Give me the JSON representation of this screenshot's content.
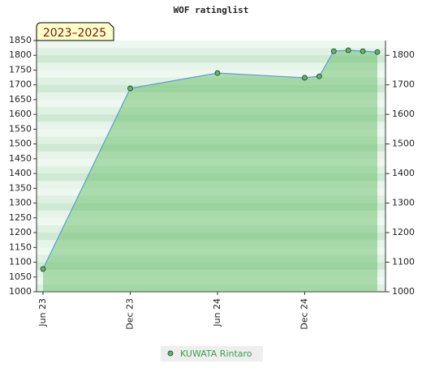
{
  "chart_data": {
    "type": "area",
    "title": "WOF ratinglist",
    "annotation": "2023–2025",
    "x": [
      "2023-06",
      "2023-12",
      "2024-06",
      "2024-12",
      "2025-01",
      "2025-02",
      "2025-03",
      "2025-04",
      "2025-05"
    ],
    "series": [
      {
        "name": "KUWATA Rintaro",
        "color": "#5cb85c",
        "line_color": "#5a9fd4",
        "values": [
          1077,
          1688,
          1740,
          1724,
          1729,
          1814,
          1817,
          1814,
          1811
        ]
      }
    ],
    "xlim": [
      "2023-06",
      "2025-05"
    ],
    "xticks": [
      {
        "value": "2023-06",
        "label": "Jun 23"
      },
      {
        "value": "2023-12",
        "label": "Dec 23"
      },
      {
        "value": "2024-06",
        "label": "Jun 24"
      },
      {
        "value": "2024-12",
        "label": "Dec 24"
      }
    ],
    "ylim": [
      1000,
      1850
    ],
    "yticks": [
      1000,
      1050,
      1100,
      1150,
      1200,
      1250,
      1300,
      1350,
      1400,
      1450,
      1500,
      1550,
      1600,
      1650,
      1700,
      1750,
      1800,
      1850
    ],
    "y2lim": [
      1000,
      1850
    ],
    "y2ticks": [
      1000,
      1100,
      1200,
      1300,
      1400,
      1500,
      1600,
      1700,
      1800
    ],
    "legend": "bottom"
  }
}
